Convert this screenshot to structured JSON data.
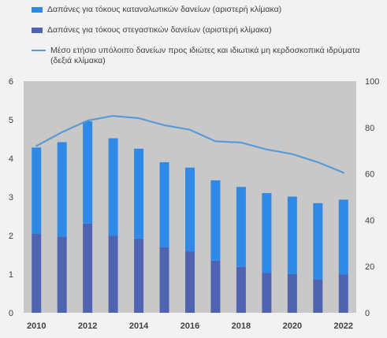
{
  "chart_data": {
    "type": "bar",
    "x": [
      2010,
      2011,
      2012,
      2013,
      2014,
      2015,
      2016,
      2017,
      2018,
      2019,
      2020,
      2021,
      2022
    ],
    "x_tick_labels": [
      "2010",
      "2012",
      "2014",
      "2016",
      "2018",
      "2020",
      "2022"
    ],
    "series": [
      {
        "name": "Δαπάνες για τόκους καταναλωτικών δανείων (αριστερή κλίμακα)",
        "kind": "stacked-bar",
        "axis": "left",
        "color": "#2e8ae6",
        "values": [
          2.23,
          2.45,
          2.65,
          2.53,
          2.33,
          2.2,
          2.17,
          2.08,
          2.07,
          2.07,
          2.01,
          1.97,
          1.94
        ]
      },
      {
        "name": "Δαπάνες για τόκους στεγαστικών δανείων (αριστερή κλίμακα)",
        "kind": "stacked-bar",
        "axis": "left",
        "color": "#4f64b0",
        "values": [
          2.05,
          1.97,
          2.31,
          1.99,
          1.92,
          1.7,
          1.59,
          1.35,
          1.19,
          1.03,
          1.0,
          0.87,
          0.99
        ]
      },
      {
        "name": "Μέσο ετήσιο υπόλοιπο δανείων προς ιδιώτες και ιδιωτικά μη κερδοσκοπικά ιδρύματα (δεξιά κλίμακα)",
        "kind": "line",
        "axis": "right",
        "color": "#5b9bd5",
        "values": [
          72,
          78,
          83,
          85,
          84,
          81,
          79,
          74,
          73.5,
          70.5,
          68.5,
          65,
          60.5
        ]
      }
    ],
    "y_left": {
      "ylim": [
        0,
        6
      ],
      "ticks": [
        "0",
        "1",
        "2",
        "3",
        "4",
        "5",
        "6"
      ]
    },
    "y_right": {
      "ylim": [
        0,
        100
      ],
      "ticks": [
        "0",
        "20",
        "40",
        "60",
        "80",
        "100"
      ]
    },
    "grid": false,
    "legend_position": "top",
    "plot_background": "#c8c8c8"
  }
}
